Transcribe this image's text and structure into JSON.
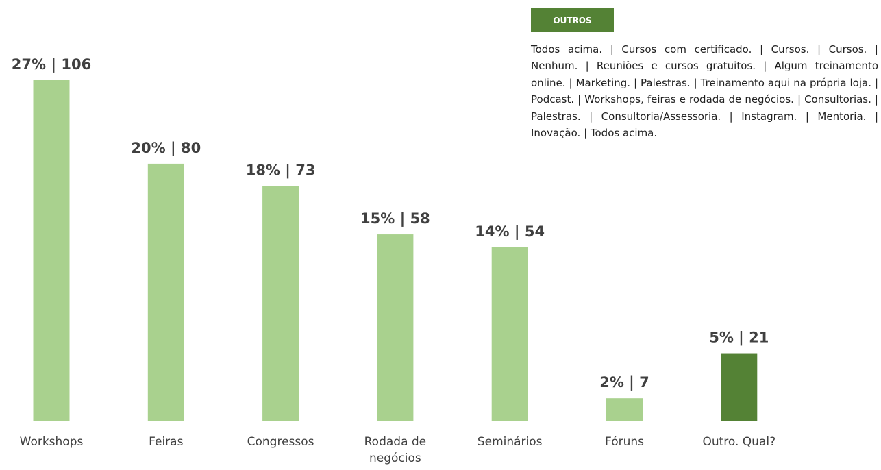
{
  "chart_data": {
    "type": "bar",
    "categories": [
      "Workshops",
      "Feiras",
      "Congressos",
      "Rodada de negócios",
      "Seminários",
      "Fóruns",
      "Outro. Qual?"
    ],
    "values": [
      106,
      80,
      73,
      58,
      54,
      7,
      21
    ],
    "value_labels": [
      "27% | 106",
      "20% | 80",
      "18% | 73",
      "15% | 58",
      "14% | 54",
      "2% | 7",
      "5% | 21"
    ],
    "colors": [
      "#a9d18e",
      "#a9d18e",
      "#a9d18e",
      "#a9d18e",
      "#a9d18e",
      "#a9d18e",
      "#548235"
    ],
    "note": {
      "title": "OUTROS",
      "text": "Todos acima. | Cursos com certificado. | Cursos. | Cursos. | Nenhum. | Reuniões e cursos gratuitos. | Algum treinamento online. | Marketing. | Palestras. | Treinamento aqui na própria loja. | Podcast. | Workshops, feiras e rodada de negócios. | Consultorias. | Palestras. | Consultoria/Assessoria. | Instagram. | Mentoria. | Inovação. | Todos acima."
    }
  }
}
